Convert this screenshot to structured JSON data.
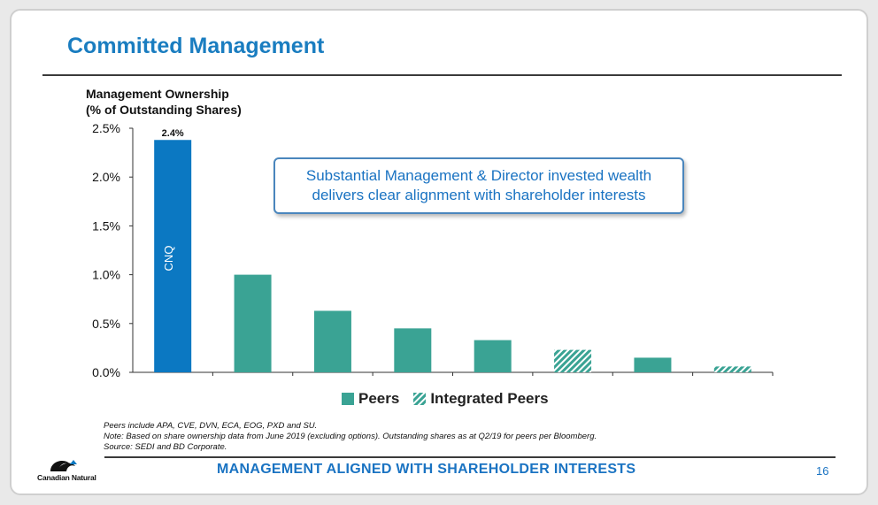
{
  "slide": {
    "title": "Committed Management",
    "callout_line1": "Substantial Management & Director invested wealth",
    "callout_line2": "delivers clear alignment with shareholder interests",
    "notes": [
      "Peers include APA, CVE, DVN, ECA, EOG, PXD and SU.",
      "Note: Based on share ownership data from June 2019 (excluding options). Outstanding shares as at Q2/19 for peers per Bloomberg.",
      "Source: SEDI and BD Corporate."
    ],
    "footer_title": "MANAGEMENT ALIGNED WITH SHAREHOLDER INTERESTS",
    "page_number": "16",
    "logo_text": "Canadian Natural",
    "colors": {
      "title": "#1a7dc0",
      "cnq_bar": "#0b78c2",
      "peers": "#3aa394",
      "integrated": "#3aa394"
    }
  },
  "chart_data": {
    "type": "bar",
    "ylabel_line1": "Management Ownership",
    "ylabel_line2": "(% of Outstanding Shares)",
    "ylim": [
      0,
      2.5
    ],
    "yticks": [
      "0.0%",
      "0.5%",
      "1.0%",
      "1.5%",
      "2.0%",
      "2.5%"
    ],
    "ytick_values": [
      0,
      0.5,
      1.0,
      1.5,
      2.0,
      2.5
    ],
    "bars": [
      {
        "value": 2.38,
        "group": "cnq",
        "label_inside": "CNQ",
        "data_label": "2.4%"
      },
      {
        "value": 1.0,
        "group": "peers"
      },
      {
        "value": 0.63,
        "group": "peers"
      },
      {
        "value": 0.45,
        "group": "peers"
      },
      {
        "value": 0.33,
        "group": "peers"
      },
      {
        "value": 0.23,
        "group": "integrated"
      },
      {
        "value": 0.15,
        "group": "peers"
      },
      {
        "value": 0.06,
        "group": "integrated"
      }
    ],
    "legend": [
      {
        "label": "Peers",
        "group": "peers"
      },
      {
        "label": "Integrated Peers",
        "group": "integrated"
      }
    ],
    "grid": false
  }
}
